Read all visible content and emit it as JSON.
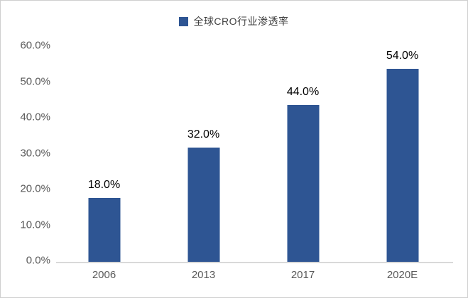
{
  "chart_data": {
    "type": "bar",
    "title": "",
    "legend_entries": [
      "全球CRO行业渗透率"
    ],
    "legend_position": "top-center",
    "categories": [
      "2006",
      "2013",
      "2017",
      "2020E"
    ],
    "values": [
      18.0,
      32.0,
      44.0,
      54.0
    ],
    "value_labels": [
      "18.0%",
      "32.0%",
      "44.0%",
      "54.0%"
    ],
    "xlabel": "",
    "ylabel": "",
    "ylim": [
      0,
      60
    ],
    "ytick_step": 10,
    "ytick_labels": [
      "0.0%",
      "10.0%",
      "20.0%",
      "30.0%",
      "40.0%",
      "50.0%",
      "60.0%"
    ],
    "grid": false,
    "colors": {
      "bar": "#2E5593",
      "axis_line": "#D9D9D9",
      "tick_label": "#595959",
      "value_label": "#000000",
      "frame_border": "#CFCFCF",
      "background": "#FFFFFF"
    }
  },
  "legend": {
    "label": "全球CRO行业渗透率",
    "swatch_color": "#2E5593"
  }
}
